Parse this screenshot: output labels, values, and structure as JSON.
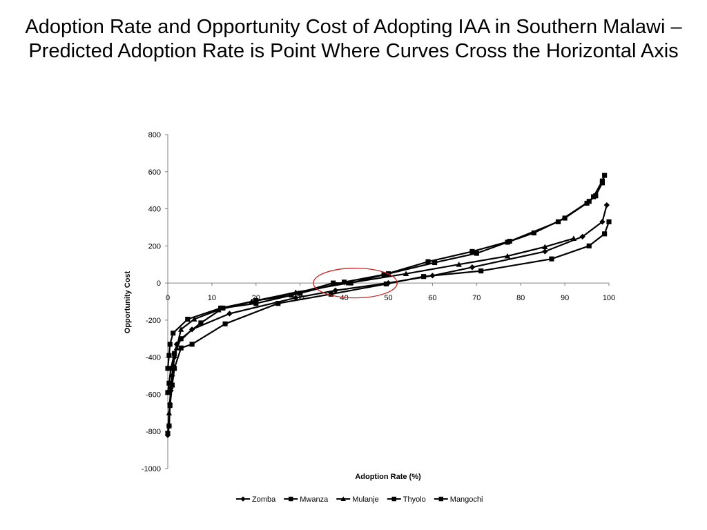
{
  "slide": {
    "title": "Adoption Rate and Opportunity Cost of Adopting IAA in Southern Malawi – Predicted Adoption Rate is Point Where Curves Cross the Horizontal Axis"
  },
  "chart_data": {
    "type": "scatter",
    "xlabel": "Adoption Rate (%)",
    "ylabel": "Opportunity Cost",
    "xlim": [
      0,
      100
    ],
    "ylim": [
      -1000,
      800
    ],
    "x_ticks": [
      0,
      10,
      20,
      30,
      40,
      50,
      60,
      70,
      80,
      90,
      100
    ],
    "y_ticks": [
      800,
      600,
      400,
      200,
      0,
      -200,
      -400,
      -600,
      -800,
      -1000
    ],
    "legend_position": "bottom",
    "line_color": "#000000",
    "highlight_color": "#cc2222",
    "highlight_region": {
      "x_center": 42.5,
      "y_center": 0,
      "x_radius": 9.5,
      "y_radius": 80
    },
    "series": [
      {
        "name": "Zomba",
        "marker": "diamond",
        "points": [
          [
            0,
            -820
          ],
          [
            0.3,
            -770
          ],
          [
            0.5,
            -650
          ],
          [
            0.7,
            -580
          ],
          [
            1.0,
            -500
          ],
          [
            1.5,
            -400
          ],
          [
            2.0,
            -330
          ],
          [
            5.5,
            -250
          ],
          [
            14,
            -165
          ],
          [
            29,
            -80
          ],
          [
            38,
            -40
          ],
          [
            50,
            0
          ],
          [
            60,
            40
          ],
          [
            69,
            85
          ],
          [
            85.5,
            170
          ],
          [
            94,
            250
          ],
          [
            98.5,
            330
          ],
          [
            99.5,
            420
          ]
        ]
      },
      {
        "name": "Mwanza",
        "marker": "square",
        "points": [
          [
            0,
            -810
          ],
          [
            0.3,
            -770
          ],
          [
            0.5,
            -660
          ],
          [
            1.0,
            -550
          ],
          [
            1.5,
            -460
          ],
          [
            3.0,
            -350
          ],
          [
            5.5,
            -330
          ],
          [
            13,
            -220
          ],
          [
            25,
            -110
          ],
          [
            37,
            -60
          ],
          [
            49.5,
            -5
          ],
          [
            58,
            35
          ],
          [
            71,
            65
          ],
          [
            87,
            130
          ],
          [
            95.5,
            200
          ],
          [
            99,
            265
          ],
          [
            100,
            330
          ]
        ]
      },
      {
        "name": "Mulanje",
        "marker": "triangle",
        "points": [
          [
            0,
            -810
          ],
          [
            0.3,
            -700
          ],
          [
            0.7,
            -560
          ],
          [
            1.2,
            -440
          ],
          [
            2.0,
            -350
          ],
          [
            3.0,
            -250
          ],
          [
            6.0,
            -195
          ],
          [
            11.5,
            -145
          ],
          [
            19,
            -100
          ],
          [
            29,
            -50
          ],
          [
            41,
            0
          ],
          [
            54,
            50
          ],
          [
            66,
            100
          ],
          [
            77,
            145
          ],
          [
            85.5,
            195
          ],
          [
            92,
            240
          ]
        ]
      },
      {
        "name": "Thyolo",
        "marker": "square",
        "points": [
          [
            0,
            -460
          ],
          [
            0.3,
            -390
          ],
          [
            0.5,
            -330
          ],
          [
            1.2,
            -270
          ],
          [
            4.5,
            -195
          ],
          [
            12,
            -135
          ],
          [
            20,
            -95
          ],
          [
            28,
            -65
          ],
          [
            37.5,
            0
          ],
          [
            41.5,
            0
          ],
          [
            49,
            45
          ],
          [
            59,
            115
          ],
          [
            69,
            170
          ],
          [
            77.5,
            225
          ],
          [
            88.5,
            330
          ],
          [
            95.5,
            440
          ],
          [
            96.5,
            465
          ],
          [
            98.5,
            550
          ],
          [
            99,
            580
          ]
        ]
      },
      {
        "name": "Mangochi",
        "marker": "square",
        "points": [
          [
            0,
            -590
          ],
          [
            0.3,
            -540
          ],
          [
            0.7,
            -460
          ],
          [
            1.5,
            -380
          ],
          [
            3.0,
            -300
          ],
          [
            7.5,
            -215
          ],
          [
            12.5,
            -135
          ],
          [
            20,
            -110
          ],
          [
            30,
            -55
          ],
          [
            40,
            5
          ],
          [
            50,
            50
          ],
          [
            60.5,
            110
          ],
          [
            70,
            160
          ],
          [
            77,
            220
          ],
          [
            83,
            270
          ],
          [
            90,
            350
          ],
          [
            95,
            430
          ],
          [
            97,
            470
          ],
          [
            98.5,
            540
          ]
        ]
      }
    ]
  }
}
